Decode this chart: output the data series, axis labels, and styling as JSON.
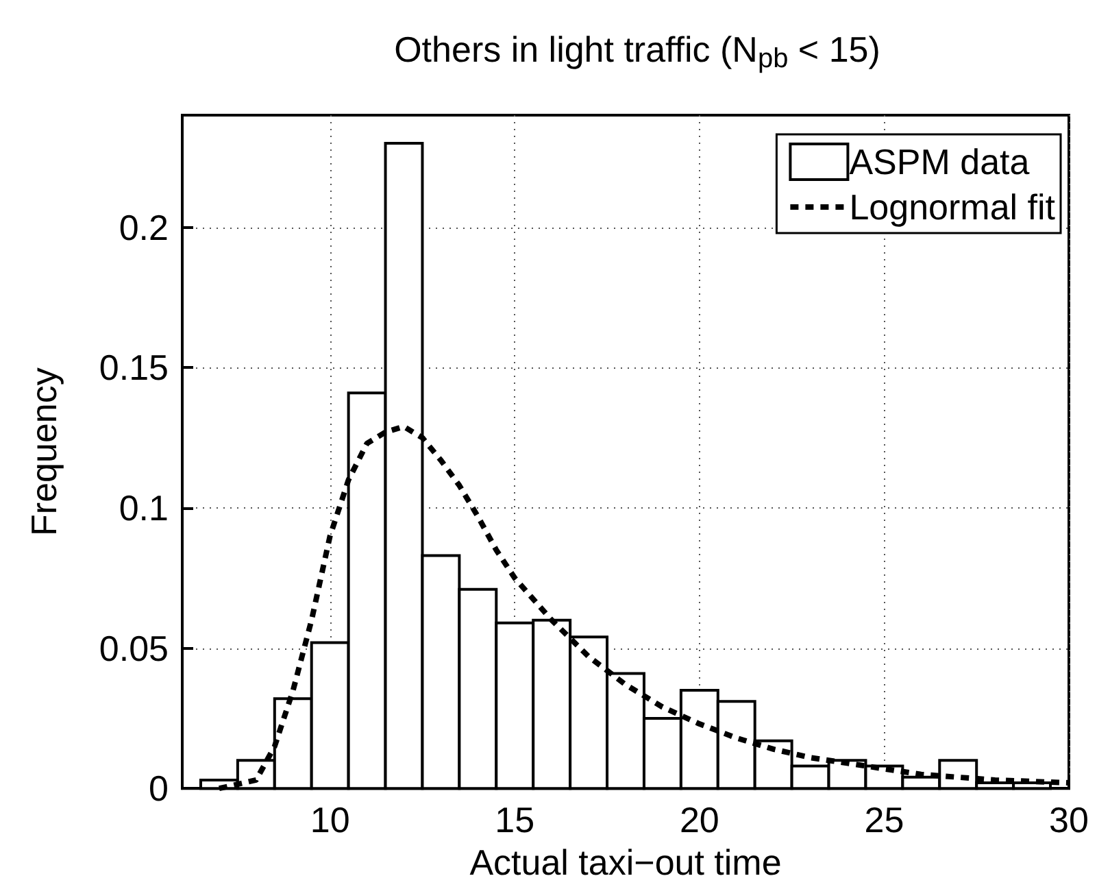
{
  "chart_data": {
    "type": "histogram",
    "title": "Others in light traffic (N$_{pb}$ < 15)",
    "xlabel": "Actual taxi−out time",
    "ylabel": "Frequency",
    "xlim": [
      6,
      30
    ],
    "xticks": [
      10,
      15,
      20,
      25,
      30
    ],
    "ylim": [
      0,
      0.24
    ],
    "yticks": [
      0,
      0.05,
      0.1,
      0.15,
      0.2
    ],
    "grid": true,
    "legend": "top right",
    "series": [
      {
        "name": "ASPM data",
        "type": "histogram",
        "color": "#ffffff",
        "bins": [
          6.5,
          7.5,
          8.5,
          9.5,
          10.5,
          11.5,
          12.5,
          13.5,
          14.5,
          15.5,
          16.5,
          17.5,
          18.5,
          19.5,
          20.5,
          21.5,
          22.5,
          23.5,
          24.5,
          25.5,
          26.5,
          27.5,
          28.5,
          29.5
        ],
        "values": [
          0.003,
          0.01,
          0.032,
          0.052,
          0.141,
          0.23,
          0.083,
          0.071,
          0.059,
          0.06,
          0.054,
          0.041,
          0.025,
          0.035,
          0.031,
          0.017,
          0.008,
          0.01,
          0.008,
          0.004,
          0.01,
          0.002,
          0.002
        ]
      },
      {
        "name": "Lognormal fit",
        "type": "line",
        "color": "#000000",
        "line_style": "dashed",
        "marker": "none",
        "x": [
          7,
          8,
          8.5,
          9,
          9.5,
          10,
          10.5,
          11,
          11.5,
          12,
          12.5,
          13,
          13.5,
          14,
          14.5,
          15,
          16,
          17,
          18,
          19,
          20,
          21,
          22,
          23,
          24,
          25,
          26,
          27,
          28,
          30
        ],
        "values": [
          0,
          0.003,
          0.015,
          0.035,
          0.06,
          0.09,
          0.11,
          0.123,
          0.127,
          0.129,
          0.125,
          0.117,
          0.108,
          0.097,
          0.085,
          0.075,
          0.06,
          0.047,
          0.037,
          0.029,
          0.023,
          0.018,
          0.014,
          0.011,
          0.009,
          0.007,
          0.005,
          0.004,
          0.003,
          0.002
        ]
      }
    ]
  }
}
